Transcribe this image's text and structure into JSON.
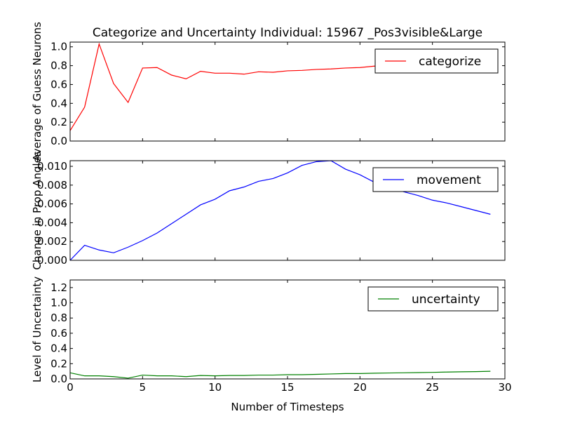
{
  "chart_data": [
    {
      "type": "line",
      "title": "Categorize and Uncertainty Individual: 15967 _Pos3visible&Large",
      "xlabel": "",
      "ylabel": "Average of Guess Neurons",
      "xlim": [
        0,
        30
      ],
      "ylim": [
        0.0,
        1.05
      ],
      "yticks": [
        "0.0",
        "0.2",
        "0.4",
        "0.6",
        "0.8",
        "1.0"
      ],
      "yticks_values": [
        0.0,
        0.2,
        0.4,
        0.6,
        0.8,
        1.0
      ],
      "xtick_values": [
        0,
        5,
        10,
        15,
        20,
        25,
        30
      ],
      "show_xtick_labels": false,
      "legend_position": "upper-right",
      "series": [
        {
          "name": "categorize",
          "color": "#ff0000",
          "x": [
            0,
            1,
            2,
            3,
            4,
            5,
            6,
            7,
            8,
            9,
            10,
            11,
            12,
            13,
            14,
            15,
            16,
            17,
            18,
            19,
            20,
            21,
            22,
            23,
            24,
            25,
            26,
            27,
            28,
            29
          ],
          "values": [
            0.11,
            0.36,
            1.03,
            0.61,
            0.41,
            0.775,
            0.78,
            0.7,
            0.66,
            0.74,
            0.72,
            0.72,
            0.71,
            0.735,
            0.73,
            0.745,
            0.75,
            0.76,
            0.765,
            0.775,
            0.78,
            0.795,
            0.8,
            0.81,
            0.815,
            0.82,
            0.825,
            0.83,
            0.835,
            0.845
          ]
        }
      ]
    },
    {
      "type": "line",
      "title": "",
      "xlabel": "",
      "ylabel": "Change in Prop Angles",
      "xlim": [
        0,
        30
      ],
      "ylim": [
        0.0,
        0.0106
      ],
      "yticks": [
        "0.000",
        "0.002",
        "0.004",
        "0.006",
        "0.008",
        "0.010"
      ],
      "yticks_values": [
        0.0,
        0.002,
        0.004,
        0.006,
        0.008,
        0.01
      ],
      "xtick_values": [
        0,
        5,
        10,
        15,
        20,
        25,
        30
      ],
      "show_xtick_labels": false,
      "legend_position": "upper-right",
      "series": [
        {
          "name": "movement",
          "color": "#0000ff",
          "x": [
            0,
            1,
            2,
            3,
            4,
            5,
            6,
            7,
            8,
            9,
            10,
            11,
            12,
            13,
            14,
            15,
            16,
            17,
            18,
            19,
            20,
            21,
            22,
            23,
            24,
            25,
            26,
            27,
            28,
            29
          ],
          "values": [
            0.0,
            0.0016,
            0.0011,
            0.0008,
            0.0014,
            0.0021,
            0.0029,
            0.0039,
            0.0049,
            0.0059,
            0.0065,
            0.0074,
            0.0078,
            0.0084,
            0.0087,
            0.0093,
            0.0101,
            0.0105,
            0.0106,
            0.0097,
            0.0091,
            0.0083,
            0.0077,
            0.0073,
            0.0069,
            0.0064,
            0.0061,
            0.0057,
            0.0053,
            0.0049
          ]
        }
      ]
    },
    {
      "type": "line",
      "title": "",
      "xlabel": "Number of Timesteps",
      "ylabel": "Level of Uncertainty",
      "xlim": [
        0,
        30
      ],
      "ylim": [
        0.0,
        1.3
      ],
      "yticks": [
        "0.0",
        "0.2",
        "0.4",
        "0.6",
        "0.8",
        "1.0",
        "1.2"
      ],
      "yticks_values": [
        0.0,
        0.2,
        0.4,
        0.6,
        0.8,
        1.0,
        1.2
      ],
      "xticks": [
        "0",
        "5",
        "10",
        "15",
        "20",
        "25",
        "30"
      ],
      "xtick_values": [
        0,
        5,
        10,
        15,
        20,
        25,
        30
      ],
      "show_xtick_labels": true,
      "legend_position": "upper-right",
      "series": [
        {
          "name": "uncertainty",
          "color": "#008000",
          "x": [
            0,
            1,
            2,
            3,
            4,
            5,
            6,
            7,
            8,
            9,
            10,
            11,
            12,
            13,
            14,
            15,
            16,
            17,
            18,
            19,
            20,
            21,
            22,
            23,
            24,
            25,
            26,
            27,
            28,
            29
          ],
          "values": [
            0.08,
            0.04,
            0.04,
            0.03,
            0.01,
            0.05,
            0.04,
            0.04,
            0.03,
            0.045,
            0.04,
            0.045,
            0.045,
            0.05,
            0.05,
            0.055,
            0.055,
            0.06,
            0.065,
            0.07,
            0.07,
            0.075,
            0.078,
            0.08,
            0.083,
            0.086,
            0.09,
            0.093,
            0.096,
            0.1
          ]
        }
      ]
    }
  ]
}
